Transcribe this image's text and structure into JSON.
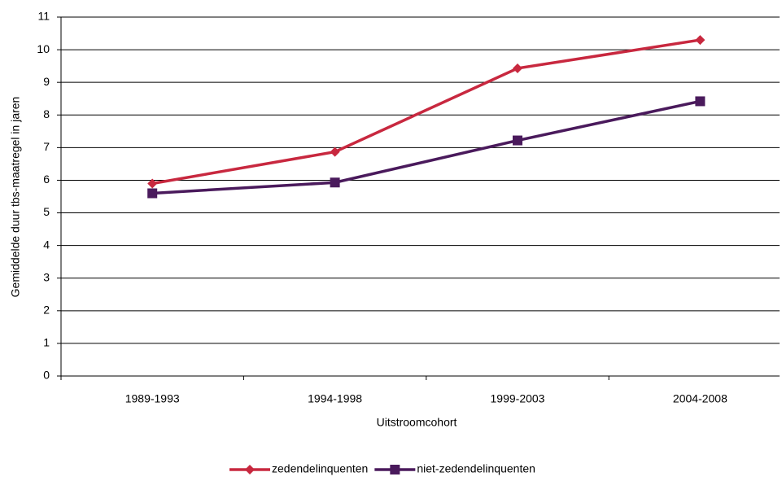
{
  "chart_data": {
    "type": "line",
    "x_label": "Uitstroomcohort",
    "y_label": "Gemiddelde duur tbs-maatregel in jaren",
    "categories": [
      "1989-1993",
      "1994-1998",
      "1999-2003",
      "2004-2008"
    ],
    "series": [
      {
        "name": "zedendelinquenten",
        "color": "#c8283f",
        "marker": "diamond",
        "values": [
          5.9,
          6.87,
          9.43,
          10.3
        ]
      },
      {
        "name": "niet-zedendelinquenten",
        "color": "#4a1a5c",
        "marker": "square",
        "values": [
          5.6,
          5.93,
          7.22,
          8.42
        ]
      }
    ],
    "ylim": [
      0,
      11
    ],
    "yticks": [
      0,
      1,
      2,
      3,
      4,
      5,
      6,
      7,
      8,
      9,
      10,
      11
    ],
    "grid": true,
    "legend": "bottom"
  }
}
